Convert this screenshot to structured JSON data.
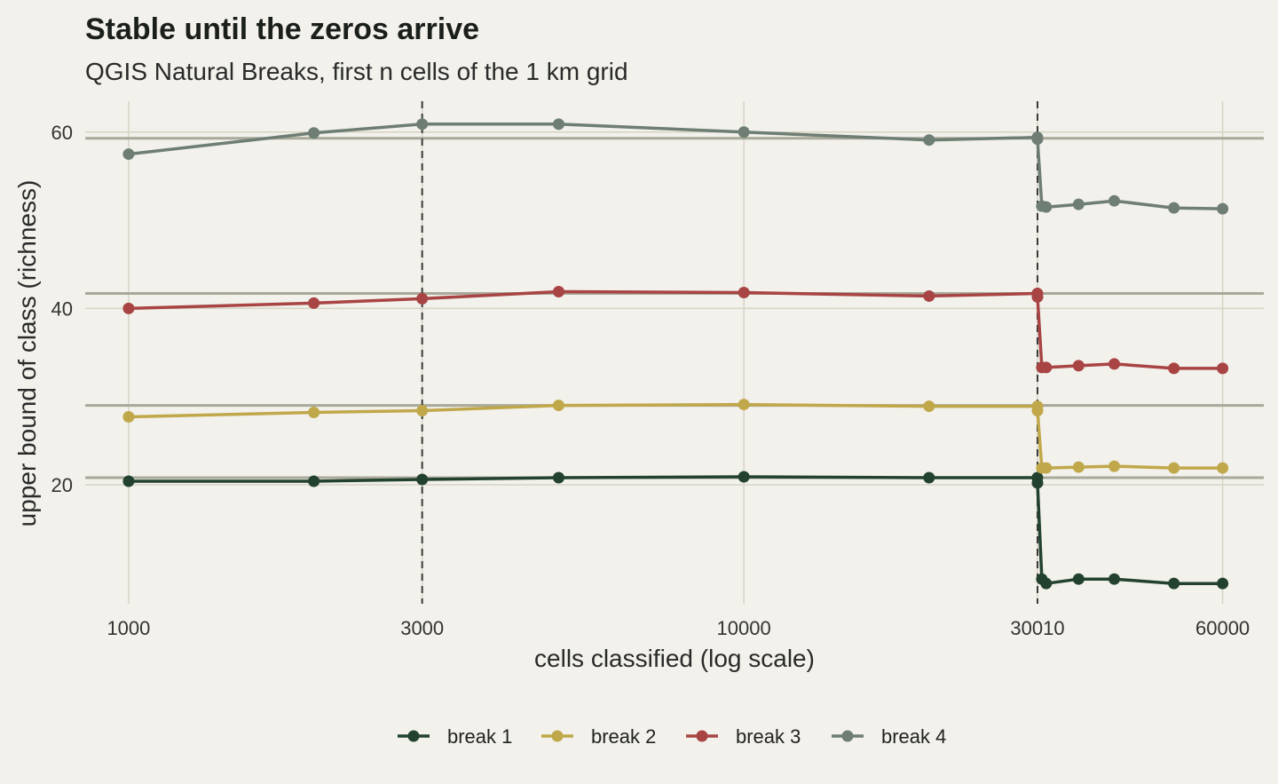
{
  "chart_data": {
    "type": "line",
    "title": "Stable until the zeros arrive",
    "subtitle": "QGIS Natural Breaks, first n cells of the 1 km grid",
    "xlabel": "cells classified (log scale)",
    "ylabel": "upper bound of class (richness)",
    "x_scale": "log",
    "xlim": [
      850,
      70000
    ],
    "ylim": [
      6.5,
      63.5
    ],
    "x_ticks": [
      1000,
      3000,
      10000,
      30010,
      60000
    ],
    "x_tick_labels": [
      "1000",
      "3000",
      "10000",
      "30010",
      "60000"
    ],
    "y_ticks": [
      20,
      40,
      60
    ],
    "y_tick_labels": [
      "20",
      "40",
      "60"
    ],
    "grid": true,
    "legend_position": "bottom",
    "vlines": [
      3000,
      30010
    ],
    "hlines": [
      20.8,
      29.0,
      41.7,
      59.3
    ],
    "x": [
      1000,
      2000,
      3000,
      5000,
      10000,
      20000,
      30000,
      30010,
      30500,
      31000,
      35000,
      40000,
      50000,
      60000
    ],
    "series": [
      {
        "name": "break 1",
        "color": "#22422f",
        "values": [
          20.4,
          20.4,
          20.6,
          20.8,
          20.9,
          20.8,
          20.8,
          20.2,
          9.3,
          8.8,
          9.3,
          9.3,
          8.8,
          8.8
        ]
      },
      {
        "name": "break 2",
        "color": "#c0a84a",
        "values": [
          27.7,
          28.2,
          28.4,
          29.0,
          29.1,
          28.9,
          28.9,
          28.4,
          21.9,
          21.9,
          22.0,
          22.1,
          21.9,
          21.9
        ]
      },
      {
        "name": "break 3",
        "color": "#a84444",
        "values": [
          40.0,
          40.6,
          41.1,
          41.9,
          41.8,
          41.4,
          41.7,
          41.3,
          33.3,
          33.3,
          33.5,
          33.7,
          33.2,
          33.2
        ]
      },
      {
        "name": "break 4",
        "color": "#6e7e74",
        "values": [
          57.5,
          59.9,
          60.9,
          60.9,
          60.0,
          59.1,
          59.4,
          59.2,
          51.6,
          51.5,
          51.8,
          52.2,
          51.4,
          51.3
        ]
      }
    ]
  }
}
